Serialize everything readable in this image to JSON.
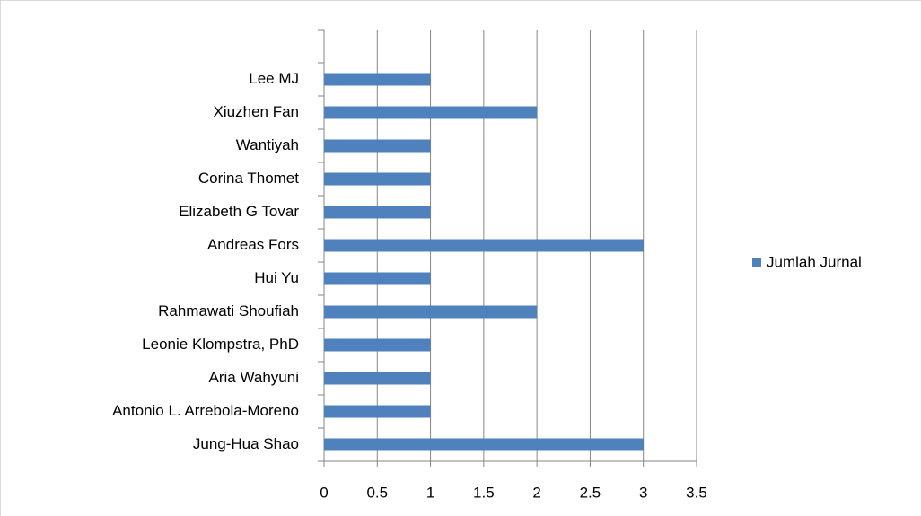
{
  "chart_data": {
    "type": "bar",
    "orientation": "horizontal",
    "categories": [
      "Jung-Hua Shao",
      "Antonio L. Arrebola-Moreno",
      "Aria Wahyuni",
      "Leonie Klompstra, PhD",
      "Rahmawati Shoufiah",
      "Hui Yu",
      "Andreas Fors",
      "Elizabeth G Tovar",
      "Corina Thomet",
      "Wantiyah",
      "Xiuzhen Fan",
      "Lee MJ",
      null
    ],
    "series": [
      {
        "name": "Jumlah Jurnal",
        "color": "#4f81bd",
        "values": [
          3,
          1,
          1,
          1,
          2,
          1,
          3,
          1,
          1,
          1,
          2,
          1,
          null
        ]
      }
    ],
    "xlim": [
      0,
      3.5
    ],
    "xticks": [
      0,
      0.5,
      1,
      1.5,
      2,
      2.5,
      3,
      3.5
    ],
    "grid": true,
    "legend": "right"
  }
}
